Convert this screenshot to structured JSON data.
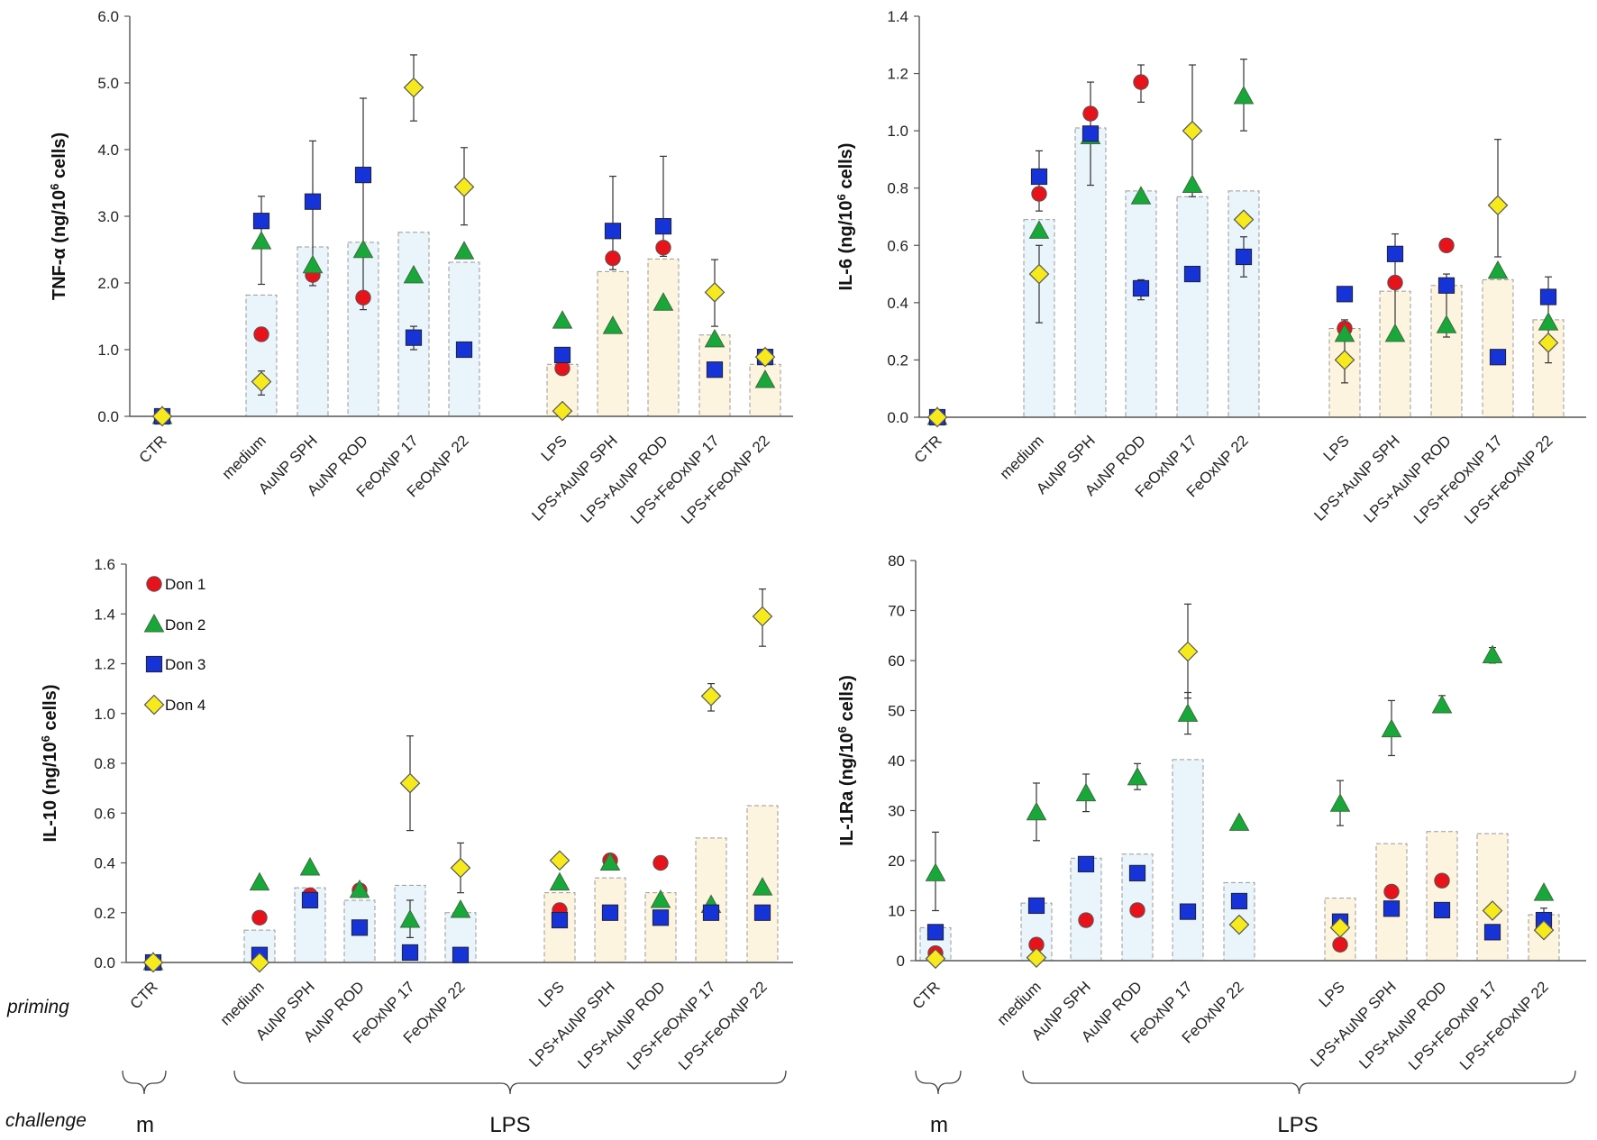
{
  "colors": {
    "don1": "#e8121b",
    "don2": "#18a83a",
    "don3": "#1533d6",
    "don4": "#f6ea1c",
    "medium_bar": "#e9f4fb",
    "lps_bar": "#fdf4df",
    "bar_edge": "#9a9a9a"
  },
  "legend": [
    {
      "label": "Don 1",
      "marker": "circle",
      "color": "#e8121b"
    },
    {
      "label": "Don 2",
      "marker": "triangle",
      "color": "#18a83a"
    },
    {
      "label": "Don 3",
      "marker": "square",
      "color": "#1533d6"
    },
    {
      "label": "Don 4",
      "marker": "diamond",
      "color": "#f6ea1c"
    }
  ],
  "annotations": {
    "priming": "priming",
    "challenge": "challenge",
    "challenge_m": "m",
    "challenge_lps": "LPS"
  },
  "chart_data": [
    {
      "type": "scatter",
      "title": "",
      "ylabel_parts": [
        "TNF-α (ng/10",
        "6",
        " cells)"
      ],
      "ylim": [
        0,
        6
      ],
      "yticks": [
        "0.0",
        "1.0",
        "2.0",
        "3.0",
        "4.0",
        "5.0",
        "6.0"
      ],
      "categories": [
        "CTR",
        "medium",
        "AuNP SPH",
        "AuNP ROD",
        "FeOxNP 17",
        "FeOxNP 22",
        "LPS",
        "LPS+AuNP SPH",
        "LPS+AuNP ROD",
        "LPS+FeOxNP 17",
        "LPS+FeOxNP 22"
      ],
      "bar_means": [
        0,
        1.82,
        2.54,
        2.61,
        2.76,
        2.31,
        0.78,
        2.17,
        2.36,
        1.22,
        0.78
      ],
      "series": [
        {
          "name": "Don 1",
          "values": [
            0,
            1.23,
            2.12,
            1.78,
            null,
            null,
            0.72,
            2.37,
            2.53,
            null,
            0.9
          ]
        },
        {
          "name": "Don 2",
          "values": [
            0,
            2.62,
            2.26,
            2.49,
            2.11,
            2.47,
            1.43,
            1.35,
            1.7,
            1.15,
            0.54
          ]
        },
        {
          "name": "Don 3",
          "values": [
            0,
            2.93,
            3.22,
            3.62,
            1.18,
            1.0,
            0.92,
            2.78,
            2.85,
            0.7,
            0.89
          ]
        },
        {
          "name": "Don 4",
          "values": [
            0,
            0.52,
            null,
            null,
            4.93,
            3.44,
            0.08,
            null,
            null,
            1.86,
            0.89
          ]
        }
      ],
      "error_bars": [
        {
          "category": "medium",
          "series": "Don 3",
          "low": 2.6,
          "high": 3.3
        },
        {
          "category": "medium",
          "series": "Don 2",
          "low": 1.98,
          "high": 2.62
        },
        {
          "category": "medium",
          "series": "Don 4",
          "low": 0.32,
          "high": 0.68
        },
        {
          "category": "AuNP SPH",
          "series": "Don 3",
          "low": 1.96,
          "high": 4.13
        },
        {
          "category": "AuNP ROD",
          "series": "Don 3",
          "low": 1.6,
          "high": 4.77
        },
        {
          "category": "FeOxNP 17",
          "series": "Don 4",
          "low": 4.43,
          "high": 5.42
        },
        {
          "category": "FeOxNP 17",
          "series": "Don 3",
          "low": 1.0,
          "high": 1.35
        },
        {
          "category": "FeOxNP 22",
          "series": "Don 4",
          "low": 2.87,
          "high": 4.03
        },
        {
          "category": "LPS+AuNP SPH",
          "series": "Don 3",
          "low": 2.2,
          "high": 3.6
        },
        {
          "category": "LPS+AuNP ROD",
          "series": "Don 3",
          "low": 2.4,
          "high": 3.9
        },
        {
          "category": "LPS+FeOxNP 17",
          "series": "Don 4",
          "low": 1.35,
          "high": 2.35
        }
      ]
    },
    {
      "type": "scatter",
      "title": "",
      "ylabel_parts": [
        "IL-6 (ng/10",
        "6",
        " cells)"
      ],
      "ylim": [
        0,
        1.4
      ],
      "yticks": [
        "0.0",
        "0.2",
        "0.4",
        "0.6",
        "0.8",
        "1.0",
        "1.2",
        "1.4"
      ],
      "categories": [
        "CTR",
        "medium",
        "AuNP SPH",
        "AuNP ROD",
        "FeOxNP 17",
        "FeOxNP 22",
        "LPS",
        "LPS+AuNP SPH",
        "LPS+AuNP ROD",
        "LPS+FeOxNP 17",
        "LPS+FeOxNP 22"
      ],
      "bar_means": [
        0,
        0.69,
        1.01,
        0.79,
        0.77,
        0.79,
        0.31,
        0.44,
        0.46,
        0.48,
        0.34
      ],
      "series": [
        {
          "name": "Don 1",
          "values": [
            0,
            0.78,
            1.06,
            1.17,
            null,
            null,
            0.31,
            0.47,
            0.6,
            null,
            null
          ]
        },
        {
          "name": "Don 2",
          "values": [
            0,
            0.65,
            0.98,
            0.77,
            0.81,
            1.12,
            0.29,
            0.29,
            0.32,
            0.51,
            0.33
          ]
        },
        {
          "name": "Don 3",
          "values": [
            0,
            0.84,
            0.99,
            0.45,
            0.5,
            0.56,
            0.43,
            0.57,
            0.46,
            0.21,
            0.42
          ]
        },
        {
          "name": "Don 4",
          "values": [
            0,
            0.5,
            null,
            null,
            1.0,
            0.69,
            0.2,
            null,
            null,
            0.74,
            0.26
          ]
        }
      ],
      "error_bars": [
        {
          "category": "medium",
          "series": "Don 3",
          "low": 0.72,
          "high": 0.93
        },
        {
          "category": "medium",
          "series": "Don 4",
          "low": 0.33,
          "high": 0.6
        },
        {
          "category": "AuNP SPH",
          "series": "Don 3",
          "low": 0.81,
          "high": 1.17
        },
        {
          "category": "AuNP ROD",
          "series": "Don 1",
          "low": 1.1,
          "high": 1.23
        },
        {
          "category": "AuNP ROD",
          "series": "Don 3",
          "low": 0.41,
          "high": 0.48
        },
        {
          "category": "FeOxNP 17",
          "series": "Don 4",
          "low": 0.77,
          "high": 1.23
        },
        {
          "category": "FeOxNP 22",
          "series": "Don 2",
          "low": 1.0,
          "high": 1.25
        },
        {
          "category": "FeOxNP 22",
          "series": "Don 3",
          "low": 0.49,
          "high": 0.63
        },
        {
          "category": "LPS",
          "series": "Don 4",
          "low": 0.12,
          "high": 0.34
        },
        {
          "category": "LPS+AuNP SPH",
          "series": "Don 3",
          "low": 0.29,
          "high": 0.64
        },
        {
          "category": "LPS+AuNP ROD",
          "series": "Don 2",
          "low": 0.28,
          "high": 0.5
        },
        {
          "category": "LPS+FeOxNP 17",
          "series": "Don 4",
          "low": 0.56,
          "high": 0.97
        },
        {
          "category": "LPS+FeOxNP 22",
          "series": "Don 3",
          "low": 0.19,
          "high": 0.49
        }
      ]
    },
    {
      "type": "scatter",
      "title": "",
      "ylabel_parts": [
        "IL-10  (ng/10",
        "6",
        " cells)"
      ],
      "ylim": [
        0,
        1.6
      ],
      "yticks": [
        "0.0",
        "0.2",
        "0.4",
        "0.6",
        "0.8",
        "1.0",
        "1.2",
        "1.4",
        "1.6"
      ],
      "categories": [
        "CTR",
        "medium",
        "AuNP SPH",
        "AuNP ROD",
        "FeOxNP 17",
        "FeOxNP 22",
        "LPS",
        "LPS+AuNP SPH",
        "LPS+AuNP ROD",
        "LPS+FeOxNP 17",
        "LPS+FeOxNP 22"
      ],
      "bar_means": [
        0,
        0.13,
        0.3,
        0.25,
        0.31,
        0.2,
        0.28,
        0.34,
        0.28,
        0.5,
        0.63
      ],
      "series": [
        {
          "name": "Don 1",
          "values": [
            0,
            0.18,
            0.27,
            0.29,
            null,
            null,
            0.21,
            0.41,
            0.4,
            null,
            null
          ]
        },
        {
          "name": "Don 2",
          "values": [
            0,
            0.32,
            0.38,
            0.29,
            0.17,
            0.21,
            0.32,
            0.4,
            0.25,
            0.23,
            0.3
          ]
        },
        {
          "name": "Don 3",
          "values": [
            0,
            0.03,
            0.25,
            0.14,
            0.04,
            0.03,
            0.17,
            0.2,
            0.18,
            0.2,
            0.2
          ]
        },
        {
          "name": "Don 4",
          "values": [
            0,
            0.0,
            null,
            null,
            0.72,
            0.38,
            0.41,
            null,
            null,
            1.07,
            1.39
          ]
        }
      ],
      "error_bars": [
        {
          "category": "FeOxNP 17",
          "series": "Don 4",
          "low": 0.53,
          "high": 0.91
        },
        {
          "category": "FeOxNP 17",
          "series": "Don 2",
          "low": 0.1,
          "high": 0.25
        },
        {
          "category": "FeOxNP 22",
          "series": "Don 4",
          "low": 0.28,
          "high": 0.48
        },
        {
          "category": "LPS+FeOxNP 17",
          "series": "Don 4",
          "low": 1.01,
          "high": 1.12
        },
        {
          "category": "LPS+FeOxNP 22",
          "series": "Don 4",
          "low": 1.27,
          "high": 1.5
        }
      ]
    },
    {
      "type": "scatter",
      "title": "",
      "ylabel_parts": [
        "IL-1Ra (ng/10",
        "6",
        " cells)"
      ],
      "ylim": [
        0,
        80
      ],
      "yticks": [
        "0",
        "10",
        "20",
        "30",
        "40",
        "50",
        "60",
        "70",
        "80"
      ],
      "categories": [
        "CTR",
        "medium",
        "AuNP SPH",
        "AuNP ROD",
        "FeOxNP 17",
        "FeOxNP 22",
        "LPS",
        "LPS+AuNP SPH",
        "LPS+AuNP ROD",
        "LPS+FeOxNP 17",
        "LPS+FeOxNP 22"
      ],
      "bar_means": [
        6.6,
        11.5,
        20.5,
        21.3,
        40.2,
        15.6,
        12.5,
        23.4,
        25.8,
        25.4,
        9.2
      ],
      "series": [
        {
          "name": "Don 1",
          "values": [
            1.5,
            3.2,
            8.1,
            10.1,
            null,
            null,
            3.2,
            13.8,
            16.0,
            null,
            7.5
          ]
        },
        {
          "name": "Don 2",
          "values": [
            17.4,
            29.6,
            33.4,
            36.6,
            49.3,
            27.5,
            31.3,
            46.2,
            51.0,
            61.0,
            13.5
          ]
        },
        {
          "name": "Don 3",
          "values": [
            5.7,
            11.0,
            19.3,
            17.5,
            9.8,
            11.9,
            7.8,
            10.4,
            10.1,
            5.7,
            8.1
          ]
        },
        {
          "name": "Don 4",
          "values": [
            0.4,
            0.6,
            null,
            null,
            61.8,
            7.2,
            6.6,
            null,
            null,
            10.0,
            6.1
          ]
        }
      ],
      "error_bars": [
        {
          "category": "CTR",
          "series": "Don 2",
          "low": 10.0,
          "high": 25.7
        },
        {
          "category": "medium",
          "series": "Don 2",
          "low": 24.0,
          "high": 35.5
        },
        {
          "category": "AuNP SPH",
          "series": "Don 2",
          "low": 29.8,
          "high": 37.3
        },
        {
          "category": "AuNP ROD",
          "series": "Don 2",
          "low": 34.2,
          "high": 39.4
        },
        {
          "category": "FeOxNP 17",
          "series": "Don 4",
          "low": 52.5,
          "high": 71.3
        },
        {
          "category": "FeOxNP 17",
          "series": "Don 2",
          "low": 45.3,
          "high": 53.6
        },
        {
          "category": "LPS",
          "series": "Don 2",
          "low": 27.0,
          "high": 36.0
        },
        {
          "category": "LPS+AuNP SPH",
          "series": "Don 2",
          "low": 41.0,
          "high": 52.0
        },
        {
          "category": "LPS+AuNP ROD",
          "series": "Don 2",
          "low": 50.0,
          "high": 53.0
        },
        {
          "category": "LPS+FeOxNP 17",
          "series": "Don 2",
          "low": 59.5,
          "high": 62.6
        },
        {
          "category": "LPS+FeOxNP 22",
          "series": "Don 3",
          "low": 6.5,
          "high": 10.5
        }
      ]
    }
  ]
}
